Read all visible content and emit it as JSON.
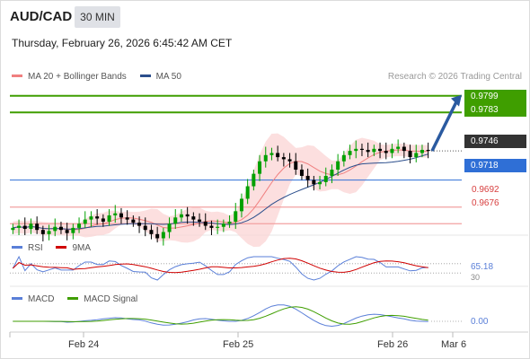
{
  "header": {
    "symbol": "AUD/CAD",
    "interval": "30 MIN",
    "timestamp": "Thursday, February 26, 2026 6:45:42 AM CET"
  },
  "legend_main": [
    {
      "label": "MA 20 + Bollinger Bands",
      "color": "#f08080"
    },
    {
      "label": "MA 50",
      "color": "#2b4e8c"
    }
  ],
  "research_note": "Research © 2026 Trading Central",
  "colors": {
    "up_candle": "#00a000",
    "down_candle": "#000000",
    "resistance": "#3f9e00",
    "support": "#2f6fd6",
    "support_light": "#f2a0a0",
    "current": "#333333",
    "bollinger_fill": "#fbd2d2",
    "arrow": "#2a5aa0"
  },
  "price_labels": [
    {
      "id": "r2",
      "value": "0.9799",
      "style": "green-box"
    },
    {
      "id": "r1",
      "value": "0.9783",
      "style": "green-box"
    },
    {
      "id": "last",
      "value": "0.9746",
      "style": "dark-box"
    },
    {
      "id": "pivot",
      "value": "0.9718",
      "style": "blue-box"
    },
    {
      "id": "s1",
      "value": "0.9692",
      "style": "red-text"
    },
    {
      "id": "s2",
      "value": "0.9676",
      "style": "red-text"
    }
  ],
  "rsi_panel": {
    "legend": [
      {
        "label": "RSI",
        "color": "#5a7fd8"
      },
      {
        "label": "9MA",
        "color": "#d00000"
      }
    ],
    "value_label": "65.18",
    "level_label": "30"
  },
  "macd_panel": {
    "legend": [
      {
        "label": "MACD",
        "color": "#5a7fd8"
      },
      {
        "label": "MACD Signal",
        "color": "#3f9e00"
      }
    ],
    "value_label": "0.00"
  },
  "x_axis": {
    "labels": [
      "Feb 24",
      "Feb 25",
      "Feb 26",
      "Mar 6"
    ]
  },
  "chart_data": {
    "type": "candlestick",
    "instrument": "AUD/CAD",
    "interval": "30 MIN",
    "ylim": [
      0.9665,
      0.981
    ],
    "levels": {
      "resistance_2": 0.9799,
      "resistance_1": 0.9783,
      "last_price": 0.9746,
      "pivot": 0.9718,
      "support_1": 0.9692,
      "support_2": 0.9676
    },
    "close_series": [
      0.9672,
      0.9674,
      0.9671,
      0.9676,
      0.967,
      0.9666,
      0.9669,
      0.9673,
      0.967,
      0.9667,
      0.9672,
      0.9676,
      0.968,
      0.9683,
      0.9681,
      0.9678,
      0.9684,
      0.9686,
      0.9682,
      0.968,
      0.9677,
      0.9674,
      0.967,
      0.9666,
      0.9662,
      0.9668,
      0.9676,
      0.9682,
      0.9685,
      0.9683,
      0.968,
      0.9678,
      0.9674,
      0.9672,
      0.9673,
      0.9676,
      0.9678,
      0.9688,
      0.97,
      0.9712,
      0.9724,
      0.9736,
      0.9742,
      0.9744,
      0.974,
      0.9738,
      0.9736,
      0.9728,
      0.9722,
      0.9718,
      0.9714,
      0.9716,
      0.9722,
      0.9728,
      0.9736,
      0.9742,
      0.9746,
      0.9748,
      0.9747,
      0.9745,
      0.9748,
      0.9746,
      0.9744,
      0.9748,
      0.975,
      0.9746,
      0.974,
      0.9744,
      0.9747,
      0.9746
    ],
    "projection": {
      "from": 0.9746,
      "to": 0.98
    }
  }
}
